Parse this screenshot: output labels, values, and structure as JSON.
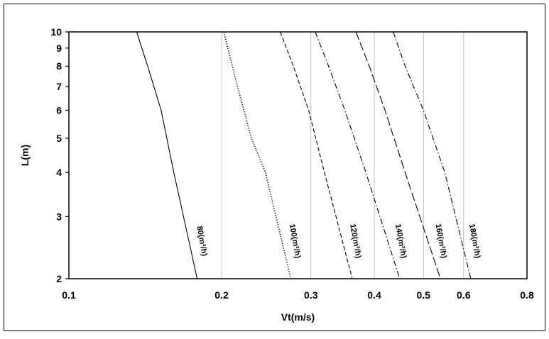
{
  "chart_data": {
    "type": "line",
    "title": "",
    "xlabel": "Vt(m/s)",
    "ylabel": "L(m)",
    "x_scale": "log",
    "y_scale": "log",
    "xlim": [
      0.1,
      0.8
    ],
    "ylim": [
      2,
      10
    ],
    "x_ticks": [
      "0.1",
      "0.2",
      "0.3",
      "0.4",
      "0.5",
      "0.6",
      "0.8"
    ],
    "x_tick_values": [
      0.1,
      0.2,
      0.3,
      0.4,
      0.5,
      0.6,
      0.8
    ],
    "y_ticks": [
      "2",
      "3",
      "4",
      "5",
      "6",
      "7",
      "8",
      "9",
      "10"
    ],
    "y_tick_values": [
      2,
      3,
      4,
      5,
      6,
      7,
      8,
      9,
      10
    ],
    "grid": "vertical",
    "series": [
      {
        "name": "80(m³/h)",
        "label_text": "80(m³/h)",
        "dash": "solid",
        "points": [
          [
            0.136,
            10
          ],
          [
            0.143,
            8
          ],
          [
            0.152,
            6
          ],
          [
            0.161,
            4
          ],
          [
            0.179,
            2
          ]
        ]
      },
      {
        "name": "100(m³/h)",
        "label_text": "100(m³/h)",
        "dash": "dotted",
        "points": [
          [
            0.202,
            10
          ],
          [
            0.215,
            7
          ],
          [
            0.229,
            5
          ],
          [
            0.244,
            4
          ],
          [
            0.274,
            2
          ]
        ]
      },
      {
        "name": "120(m³/h)",
        "label_text": "120(m³/h)",
        "dash": "dashed",
        "points": [
          [
            0.261,
            10
          ],
          [
            0.277,
            8
          ],
          [
            0.297,
            6
          ],
          [
            0.319,
            4
          ],
          [
            0.362,
            2
          ]
        ]
      },
      {
        "name": "140(m³/h)",
        "label_text": "140(m³/h)",
        "dash": "dash-dot",
        "points": [
          [
            0.306,
            10
          ],
          [
            0.325,
            8
          ],
          [
            0.35,
            6
          ],
          [
            0.385,
            4
          ],
          [
            0.449,
            2
          ]
        ]
      },
      {
        "name": "160(m³/h)",
        "label_text": "160(m³/h)",
        "dash": "long-dash",
        "points": [
          [
            0.368,
            10
          ],
          [
            0.391,
            8
          ],
          [
            0.42,
            6
          ],
          [
            0.46,
            4
          ],
          [
            0.54,
            2
          ]
        ]
      },
      {
        "name": "180(m³/h)",
        "label_text": "180(m³/h)",
        "dash": "dash-dot",
        "points": [
          [
            0.436,
            10
          ],
          [
            0.46,
            8
          ],
          [
            0.5,
            6
          ],
          [
            0.551,
            4
          ],
          [
            0.62,
            2
          ]
        ]
      }
    ]
  }
}
